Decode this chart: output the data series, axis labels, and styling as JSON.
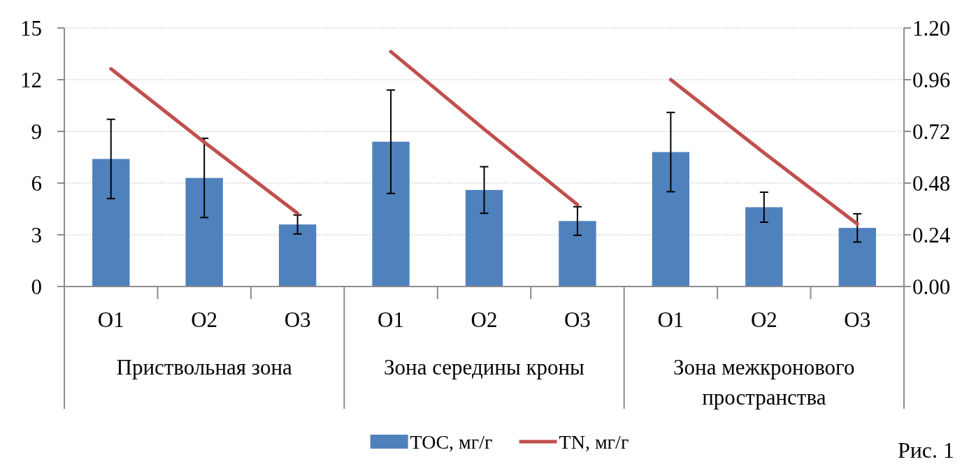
{
  "chart_data": {
    "type": "bar",
    "categories": [
      "O1",
      "O2",
      "O3",
      "O1",
      "O2",
      "O3",
      "O1",
      "O2",
      "O3"
    ],
    "series": [
      {
        "name": "TOC, мг/г",
        "color": "#4f81bd",
        "values": [
          7.4,
          6.3,
          3.6,
          8.4,
          5.6,
          3.8,
          7.8,
          4.6,
          3.4
        ],
        "errors": [
          2.3,
          2.3,
          0.55,
          3.0,
          1.35,
          0.83,
          2.3,
          0.87,
          0.82
        ]
      },
      {
        "name": "TN, мг/г",
        "type": "line",
        "axis": "y2",
        "color": "#c0504d",
        "values": [
          1.01,
          0.67,
          0.34,
          null,
          null,
          null,
          null,
          null,
          null
        ]
      },
      {
        "type": "line",
        "axis": "y2",
        "color": "#c0504d",
        "values": [
          null,
          null,
          null,
          1.09,
          0.73,
          0.38,
          null,
          null,
          null
        ]
      },
      {
        "type": "line",
        "axis": "y2",
        "color": "#c0504d",
        "values": [
          null,
          null,
          null,
          null,
          null,
          null,
          0.96,
          0.62,
          0.29
        ]
      }
    ],
    "ylim": [
      0,
      15
    ],
    "yticks": [
      0,
      3,
      6,
      9,
      12,
      15
    ],
    "y2lim": [
      0,
      1.2
    ],
    "y2ticks": [
      {
        "value": 0,
        "label": "0.00"
      },
      0.24,
      0.48,
      0.72,
      0.96,
      {
        "value": 1.2,
        "label": "1.20"
      }
    ],
    "grid": "y",
    "legend": "bottom",
    "annotations": [
      "Приствольная зона",
      "Зона середины кроны",
      "Зона межкронового пространства",
      "Рис. 1"
    ]
  }
}
